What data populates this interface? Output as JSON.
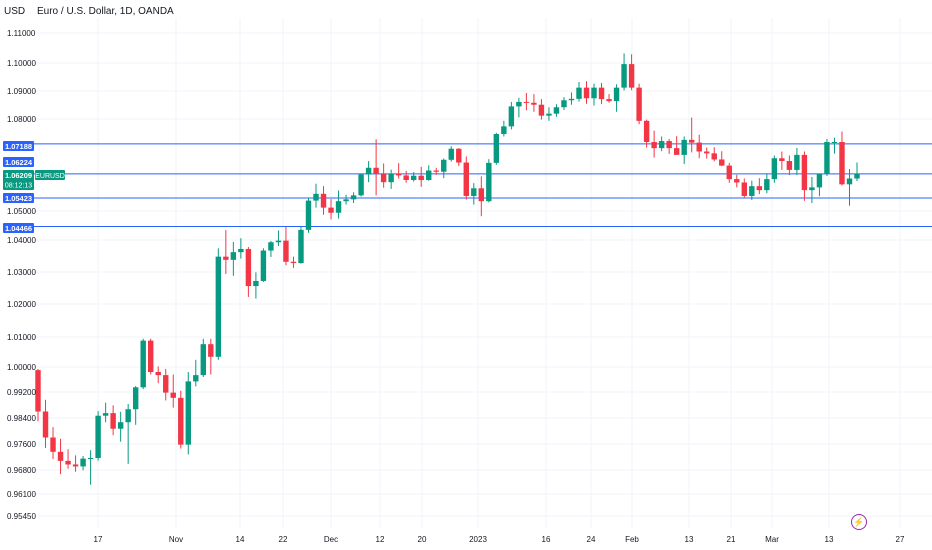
{
  "header": {
    "currency": "USD",
    "symbol_title": "Euro / U.S. Dollar, 1D, OANDA"
  },
  "markers": {
    "event_icon": "lightning-icon"
  },
  "colors": {
    "up": "#089981",
    "down": "#f23645",
    "hline": "#2962ff",
    "grid": "#f0f3fa"
  },
  "chart_data": {
    "type": "candlestick",
    "title": "Euro / U.S. Dollar, 1D, OANDA",
    "y_ticks": [
      1.11,
      1.1,
      1.09,
      1.08,
      1.05,
      1.04,
      1.03,
      1.02,
      1.01,
      1.0,
      0.992,
      0.984,
      0.976,
      0.968,
      0.961,
      0.9545
    ],
    "y_tick_labels": [
      "1.11000",
      "1.10000",
      "1.09000",
      "1.08000",
      "1.05000",
      "1.04000",
      "1.03000",
      "1.02000",
      "1.01000",
      "1.00000",
      "0.99200",
      "0.98400",
      "0.97600",
      "0.96800",
      "0.96100",
      "0.95450"
    ],
    "x_labels": [
      "17",
      "Nov",
      "14",
      "22",
      "Dec",
      "12",
      "20",
      "2023",
      "16",
      "24",
      "Feb",
      "13",
      "21",
      "Mar",
      "13",
      "27"
    ],
    "horizontal_levels": [
      {
        "price": 1.07188,
        "label": "1.07188"
      },
      {
        "price": 1.06209,
        "label": "1.06209"
      },
      {
        "price": 1.05423,
        "label": "1.05423"
      },
      {
        "price": 1.04466,
        "label": "1.04466"
      }
    ],
    "price_tags": [
      {
        "label": "1.07188"
      },
      {
        "label": "1.06224"
      },
      {
        "label": "1.06209",
        "sub": "08:12:13"
      },
      {
        "label": "1.05423"
      },
      {
        "label": "1.04466"
      }
    ],
    "current_symbol": "EURUSD",
    "candles": [
      [
        0.999,
        0.9994,
        0.983,
        0.986
      ],
      [
        0.986,
        0.9896,
        0.9748,
        0.978
      ],
      [
        0.978,
        0.9812,
        0.9714,
        0.9736
      ],
      [
        0.9736,
        0.9776,
        0.9668,
        0.9708
      ],
      [
        0.9708,
        0.9744,
        0.9684,
        0.9697
      ],
      [
        0.9697,
        0.9725,
        0.9675,
        0.9691
      ],
      [
        0.9691,
        0.9723,
        0.9679,
        0.9715
      ],
      [
        0.9715,
        0.9741,
        0.9637,
        0.9717
      ],
      [
        0.9717,
        0.9861,
        0.9709,
        0.9847
      ],
      [
        0.9847,
        0.9887,
        0.9827,
        0.9855
      ],
      [
        0.9855,
        0.9879,
        0.9787,
        0.9807
      ],
      [
        0.9807,
        0.9859,
        0.9767,
        0.9827
      ],
      [
        0.9827,
        0.9883,
        0.9699,
        0.9867
      ],
      [
        0.9867,
        0.9939,
        0.9819,
        0.9935
      ],
      [
        0.9935,
        1.0094,
        0.9929,
        1.0088
      ],
      [
        1.0088,
        1.0094,
        0.9976,
        0.9984
      ],
      [
        0.9984,
        1.0002,
        0.9948,
        0.9974
      ],
      [
        0.9974,
        0.9994,
        0.9894,
        0.9918
      ],
      [
        0.9918,
        0.9976,
        0.9872,
        0.9902
      ],
      [
        0.9902,
        0.9924,
        0.9746,
        0.9758
      ],
      [
        0.9758,
        0.9984,
        0.9728,
        0.9954
      ],
      [
        0.9954,
        1.0024,
        0.9938,
        0.9974
      ],
      [
        0.9974,
        1.0094,
        0.9968,
        1.0076
      ],
      [
        1.0076,
        1.0094,
        0.9976,
        1.0034
      ],
      [
        1.0034,
        1.0374,
        1.0024,
        1.0348
      ],
      [
        1.0348,
        1.0434,
        1.0294,
        1.0338
      ],
      [
        1.0338,
        1.0394,
        1.0288,
        1.0362
      ],
      [
        1.0362,
        1.0406,
        1.0342,
        1.0372
      ],
      [
        1.0372,
        1.0378,
        1.0222,
        1.0256
      ],
      [
        1.0256,
        1.0299,
        1.0217,
        1.0272
      ],
      [
        1.0272,
        1.0374,
        1.0269,
        1.0367
      ],
      [
        1.0367,
        1.0397,
        1.0347,
        1.0393
      ],
      [
        1.0393,
        1.0433,
        1.0381,
        1.0398
      ],
      [
        1.0398,
        1.0445,
        1.0321,
        1.0332
      ],
      [
        1.0332,
        1.0348,
        1.0313,
        1.0328
      ],
      [
        1.0328,
        1.0447,
        1.0326,
        1.0435
      ],
      [
        1.0435,
        1.0543,
        1.0425,
        1.0534
      ],
      [
        1.0534,
        1.0589,
        1.0511,
        1.0556
      ],
      [
        1.0556,
        1.0581,
        1.0487,
        1.0511
      ],
      [
        1.0511,
        1.0539,
        1.0471,
        1.0494
      ],
      [
        1.0494,
        1.0567,
        1.0474,
        1.0532
      ],
      [
        1.0532,
        1.0553,
        1.0521,
        1.0538
      ],
      [
        1.0538,
        1.0561,
        1.0526,
        1.0551
      ],
      [
        1.0551,
        1.0621,
        1.0547,
        1.0619
      ],
      [
        1.0619,
        1.0663,
        1.0594,
        1.0641
      ],
      [
        1.0641,
        1.0734,
        1.0551,
        1.0621
      ],
      [
        1.0621,
        1.0655,
        1.0576,
        1.0594
      ],
      [
        1.0594,
        1.0635,
        1.0572,
        1.0622
      ],
      [
        1.0622,
        1.0656,
        1.0606,
        1.0616
      ],
      [
        1.0616,
        1.0631,
        1.0592,
        1.0601
      ],
      [
        1.0601,
        1.0627,
        1.0596,
        1.0615
      ],
      [
        1.0615,
        1.0644,
        1.0579,
        1.0601
      ],
      [
        1.0601,
        1.0649,
        1.0599,
        1.0632
      ],
      [
        1.0632,
        1.0641,
        1.0618,
        1.0628
      ],
      [
        1.0628,
        1.0671,
        1.0607,
        1.0667
      ],
      [
        1.0667,
        1.0711,
        1.0661,
        1.0703
      ],
      [
        1.0703,
        1.0705,
        1.0647,
        1.0658
      ],
      [
        1.0658,
        1.0678,
        1.0537,
        1.0549
      ],
      [
        1.0549,
        1.0591,
        1.0521,
        1.0574
      ],
      [
        1.0574,
        1.0613,
        1.0482,
        1.0532
      ],
      [
        1.0532,
        1.0669,
        1.0528,
        1.0657
      ],
      [
        1.0657,
        1.0755,
        1.0651,
        1.0751
      ],
      [
        1.0751,
        1.0794,
        1.0743,
        1.0776
      ],
      [
        1.0776,
        1.0861,
        1.0766,
        1.0845
      ],
      [
        1.0845,
        1.0876,
        1.0806,
        1.0861
      ],
      [
        1.0861,
        1.0893,
        1.0831,
        1.0858
      ],
      [
        1.0858,
        1.0889,
        1.0826,
        1.0851
      ],
      [
        1.0851,
        1.0871,
        1.0798,
        1.0812
      ],
      [
        1.0812,
        1.0842,
        1.0794,
        1.0819
      ],
      [
        1.0819,
        1.0853,
        1.0808,
        1.0842
      ],
      [
        1.0842,
        1.0878,
        1.0832,
        1.0867
      ],
      [
        1.0867,
        1.0895,
        1.0851,
        1.0872
      ],
      [
        1.0872,
        1.0932,
        1.0862,
        1.0912
      ],
      [
        1.0912,
        1.0935,
        1.0854,
        1.0874
      ],
      [
        1.0874,
        1.0926,
        1.0848,
        1.0912
      ],
      [
        1.0912,
        1.0929,
        1.0853,
        1.0871
      ],
      [
        1.0871,
        1.0889,
        1.0858,
        1.0864
      ],
      [
        1.0864,
        1.0924,
        1.0826,
        1.0912
      ],
      [
        1.0912,
        1.1032,
        1.0902,
        1.0996
      ],
      [
        1.0996,
        1.1029,
        1.0903,
        1.0912
      ],
      [
        1.0912,
        1.0926,
        1.0783,
        1.0794
      ],
      [
        1.0794,
        1.0798,
        1.0707,
        1.0725
      ],
      [
        1.0725,
        1.0762,
        1.0674,
        1.0705
      ],
      [
        1.0705,
        1.0743,
        1.0695,
        1.0728
      ],
      [
        1.0728,
        1.0735,
        1.0686,
        1.0705
      ],
      [
        1.0705,
        1.0744,
        1.0688,
        1.0683
      ],
      [
        1.0683,
        1.0743,
        1.0653,
        1.0732
      ],
      [
        1.0732,
        1.0805,
        1.0691,
        1.0723
      ],
      [
        1.0723,
        1.0749,
        1.0672,
        1.0694
      ],
      [
        1.0694,
        1.0707,
        1.0671,
        1.0688
      ],
      [
        1.0688,
        1.0708,
        1.0662,
        1.0668
      ],
      [
        1.0668,
        1.0695,
        1.0646,
        1.0648
      ],
      [
        1.0648,
        1.0657,
        1.0592,
        1.0604
      ],
      [
        1.0604,
        1.0618,
        1.0577,
        1.0593
      ],
      [
        1.0593,
        1.0606,
        1.0542,
        1.0549
      ],
      [
        1.0549,
        1.0599,
        1.0536,
        1.0581
      ],
      [
        1.0581,
        1.0607,
        1.0555,
        1.0568
      ],
      [
        1.0568,
        1.0623,
        1.0558,
        1.0604
      ],
      [
        1.0604,
        1.0681,
        1.0592,
        1.0672
      ],
      [
        1.0672,
        1.0694,
        1.0634,
        1.0663
      ],
      [
        1.0663,
        1.0681,
        1.0617,
        1.0634
      ],
      [
        1.0634,
        1.0706,
        1.0618,
        1.0683
      ],
      [
        1.0683,
        1.0694,
        1.0533,
        1.0568
      ],
      [
        1.0568,
        1.0611,
        1.0526,
        1.0577
      ],
      [
        1.0577,
        1.0622,
        1.0548,
        1.0621
      ],
      [
        1.0621,
        1.0735,
        1.0614,
        1.0725
      ],
      [
        1.0725,
        1.0739,
        1.0687,
        1.0725
      ],
      [
        1.0725,
        1.0759,
        1.0583,
        1.0587
      ],
      [
        1.0587,
        1.0637,
        1.0517,
        1.0606
      ],
      [
        1.0606,
        1.0658,
        1.0598,
        1.0621
      ]
    ]
  }
}
